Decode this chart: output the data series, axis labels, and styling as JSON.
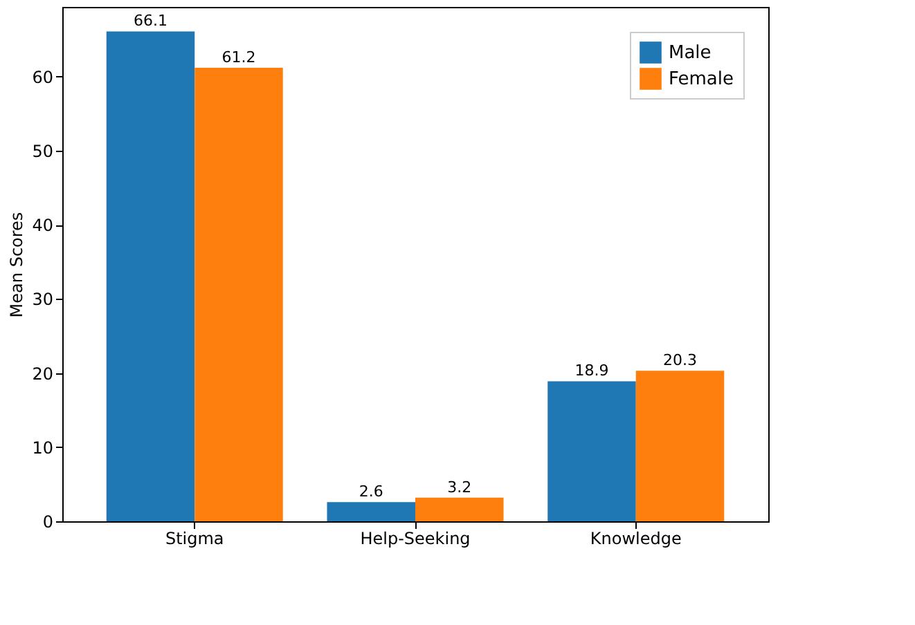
{
  "chart_data": {
    "type": "bar",
    "ylabel": "Mean Scores",
    "categories": [
      "Stigma",
      "Help-Seeking",
      "Knowledge"
    ],
    "series": [
      {
        "name": "Male",
        "color": "#1f77b4",
        "values": [
          66.1,
          2.6,
          18.9
        ]
      },
      {
        "name": "Female",
        "color": "#ff7f0e",
        "values": [
          61.2,
          3.2,
          20.3
        ]
      }
    ],
    "ylim": [
      0,
      69.4
    ],
    "yticks": [
      0,
      10,
      20,
      30,
      40,
      50,
      60
    ],
    "data_labels": true,
    "legend": "top right",
    "grid": false
  }
}
